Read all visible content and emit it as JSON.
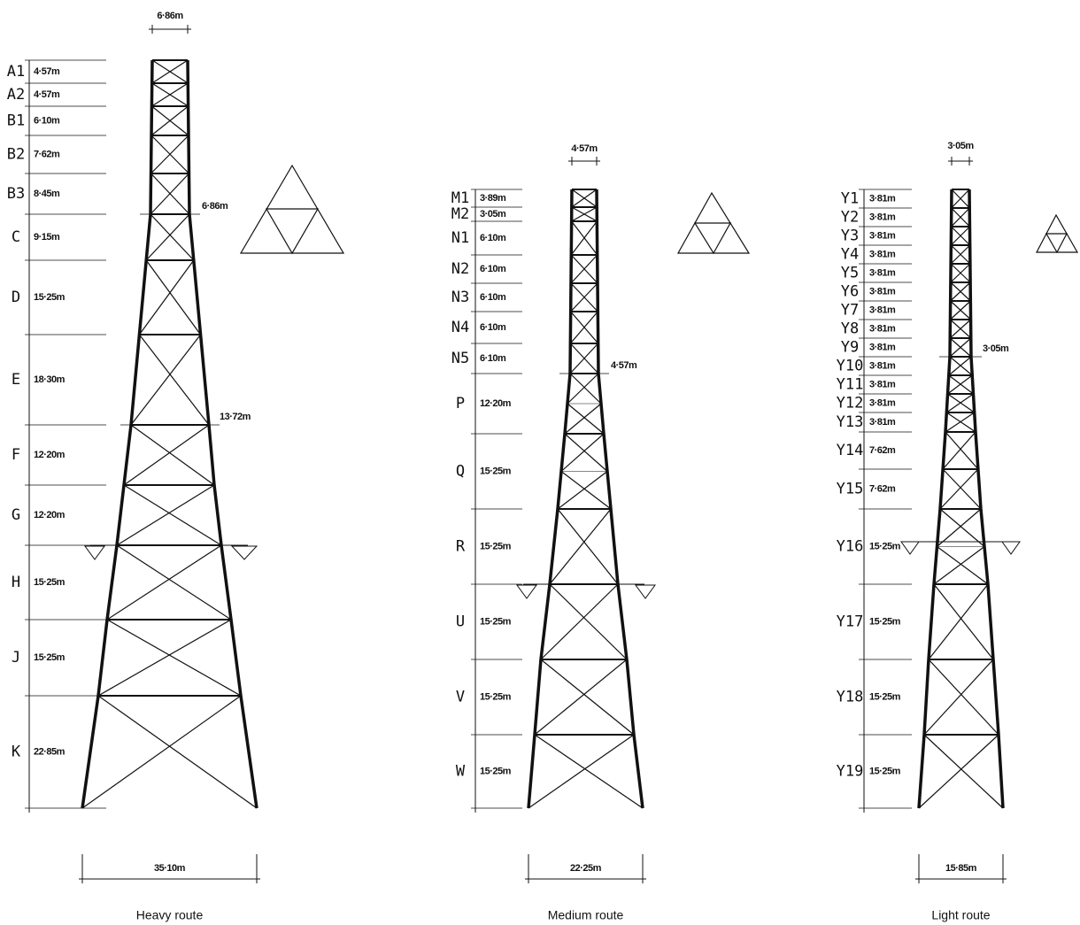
{
  "towers": [
    {
      "caption": "Heavy route",
      "top_width": "6·86m",
      "base_width": "35·10m",
      "width_labels": [
        "6·86m",
        "13·72m"
      ],
      "segments": [
        {
          "label": "A1",
          "height": "4·57m"
        },
        {
          "label": "A2",
          "height": "4·57m"
        },
        {
          "label": "B1",
          "height": "6·10m"
        },
        {
          "label": "B2",
          "height": "7·62m"
        },
        {
          "label": "B3",
          "height": "8·45m"
        },
        {
          "label": "C",
          "height": "9·15m"
        },
        {
          "label": "D",
          "height": "15·25m"
        },
        {
          "label": "E",
          "height": "18·30m"
        },
        {
          "label": "F",
          "height": "12·20m"
        },
        {
          "label": "G",
          "height": "12·20m"
        },
        {
          "label": "H",
          "height": "15·25m"
        },
        {
          "label": "J",
          "height": "15·25m"
        },
        {
          "label": "K",
          "height": "22·85m"
        }
      ]
    },
    {
      "caption": "Medium route",
      "top_width": "4·57m",
      "base_width": "22·25m",
      "width_labels": [
        "4·57m"
      ],
      "segments": [
        {
          "label": "M1",
          "height": "3·89m"
        },
        {
          "label": "M2",
          "height": "3·05m"
        },
        {
          "label": "N1",
          "height": "6·10m"
        },
        {
          "label": "N2",
          "height": "6·10m"
        },
        {
          "label": "N3",
          "height": "6·10m"
        },
        {
          "label": "N4",
          "height": "6·10m"
        },
        {
          "label": "N5",
          "height": "6·10m"
        },
        {
          "label": "P",
          "height": "12·20m"
        },
        {
          "label": "Q",
          "height": "15·25m"
        },
        {
          "label": "R",
          "height": "15·25m"
        },
        {
          "label": "U",
          "height": "15·25m"
        },
        {
          "label": "V",
          "height": "15·25m"
        },
        {
          "label": "W",
          "height": "15·25m"
        }
      ]
    },
    {
      "caption": "Light route",
      "top_width": "3·05m",
      "base_width": "15·85m",
      "width_labels": [
        "3·05m"
      ],
      "segments": [
        {
          "label": "Y1",
          "height": "3·81m"
        },
        {
          "label": "Y2",
          "height": "3·81m"
        },
        {
          "label": "Y3",
          "height": "3·81m"
        },
        {
          "label": "Y4",
          "height": "3·81m"
        },
        {
          "label": "Y5",
          "height": "3·81m"
        },
        {
          "label": "Y6",
          "height": "3·81m"
        },
        {
          "label": "Y7",
          "height": "3·81m"
        },
        {
          "label": "Y8",
          "height": "3·81m"
        },
        {
          "label": "Y9",
          "height": "3·81m"
        },
        {
          "label": "Y10",
          "height": "3·81m"
        },
        {
          "label": "Y11",
          "height": "3·81m"
        },
        {
          "label": "Y12",
          "height": "3·81m"
        },
        {
          "label": "Y13",
          "height": "3·81m"
        },
        {
          "label": "Y14",
          "height": "7·62m"
        },
        {
          "label": "Y15",
          "height": "7·62m"
        },
        {
          "label": "Y16",
          "height": "15·25m"
        },
        {
          "label": "Y17",
          "height": "15·25m"
        },
        {
          "label": "Y18",
          "height": "15·25m"
        },
        {
          "label": "Y19",
          "height": "15·25m"
        }
      ]
    }
  ]
}
